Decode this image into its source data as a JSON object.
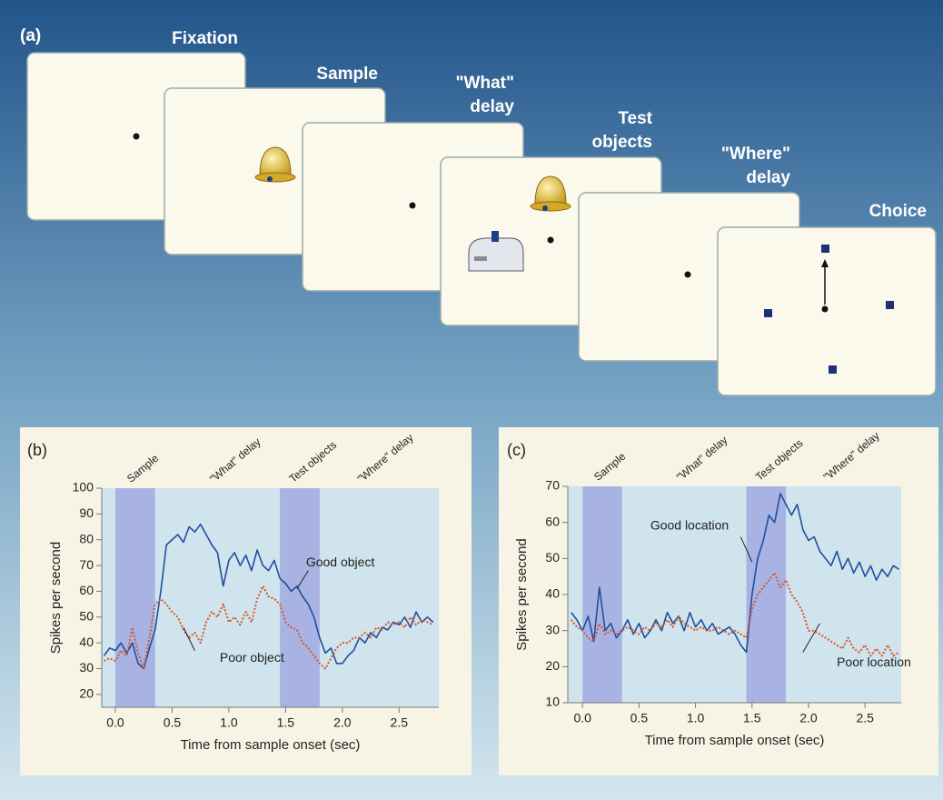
{
  "panel_a": {
    "label": "(a)",
    "screens": [
      [
        "Fixation"
      ],
      [
        "Sample"
      ],
      [
        "\"What\"",
        "delay"
      ],
      [
        "Test",
        "objects"
      ],
      [
        "\"Where\"",
        "delay"
      ],
      [
        "Choice"
      ]
    ]
  },
  "chart_data": [
    {
      "type": "line",
      "panel_label": "(b)",
      "ylabel": "Spikes per second",
      "xlabel": "Time from sample onset (sec)",
      "xlim": [
        -0.12,
        2.85
      ],
      "ylim": [
        15,
        100
      ],
      "xticks": [
        {
          "value": 0,
          "label": "0.0"
        },
        0.5,
        {
          "value": 1,
          "label": "1.0"
        },
        1.5,
        {
          "value": 2,
          "label": "2.0"
        },
        2.5
      ],
      "yticks": [
        20,
        30,
        40,
        50,
        60,
        70,
        80,
        90,
        100
      ],
      "shaded_periods": [
        {
          "start": 0,
          "end": 0.35
        },
        {
          "start": 1.45,
          "end": 1.8
        }
      ],
      "period_labels": [
        {
          "text": "Sample",
          "x": 0.12
        },
        {
          "text": "\"What\" delay",
          "x": 0.85
        },
        {
          "text": "Test objects",
          "x": 1.55
        },
        {
          "text": "\"Where\" delay",
          "x": 2.15
        }
      ],
      "x": [
        -0.1,
        -0.05,
        0,
        0.05,
        0.1,
        0.15,
        0.2,
        0.25,
        0.3,
        0.35,
        0.4,
        0.45,
        0.5,
        0.55,
        0.6,
        0.65,
        0.7,
        0.75,
        0.8,
        0.85,
        0.9,
        0.95,
        1,
        1.05,
        1.1,
        1.15,
        1.2,
        1.25,
        1.3,
        1.35,
        1.4,
        1.45,
        1.5,
        1.55,
        1.6,
        1.65,
        1.7,
        1.75,
        1.8,
        1.85,
        1.9,
        1.95,
        2,
        2.05,
        2.1,
        2.15,
        2.2,
        2.25,
        2.3,
        2.35,
        2.4,
        2.45,
        2.5,
        2.55,
        2.6,
        2.65,
        2.7,
        2.75,
        2.8
      ],
      "series": [
        {
          "name": "Good object",
          "color": "#1f4fa0",
          "style": "solid",
          "values": [
            35,
            38,
            37,
            40,
            36,
            40,
            32,
            30,
            38,
            45,
            60,
            78,
            80,
            82,
            79,
            85,
            83,
            86,
            82,
            78,
            75,
            62,
            72,
            75,
            70,
            74,
            68,
            76,
            70,
            68,
            72,
            65,
            63,
            60,
            62,
            58,
            55,
            50,
            42,
            36,
            38,
            32,
            32,
            35,
            37,
            42,
            40,
            44,
            42,
            46,
            45,
            48,
            47,
            50,
            46,
            52,
            48,
            50,
            48
          ]
        },
        {
          "name": "Poor object",
          "color": "#d9542b",
          "style": "dotted",
          "values": [
            33,
            34,
            33,
            37,
            35,
            46,
            36,
            30,
            42,
            55,
            57,
            55,
            52,
            50,
            45,
            42,
            44,
            40,
            48,
            52,
            50,
            55,
            48,
            50,
            47,
            52,
            48,
            57,
            62,
            58,
            57,
            55,
            48,
            46,
            45,
            40,
            38,
            35,
            32,
            30,
            34,
            38,
            40,
            40,
            42,
            42,
            44,
            42,
            46,
            45,
            48,
            47,
            48,
            46,
            50,
            47,
            49,
            48,
            47
          ]
        }
      ]
    },
    {
      "type": "line",
      "panel_label": "(c)",
      "ylabel": "Spikes per second",
      "xlabel": "Time from sample onset (sec)",
      "xlim": [
        -0.13,
        2.82
      ],
      "ylim": [
        10,
        70
      ],
      "xticks": [
        {
          "value": 0,
          "label": "0.0"
        },
        0.5,
        {
          "value": 1,
          "label": "1.0"
        },
        1.5,
        {
          "value": 2,
          "label": "2.0"
        },
        2.5
      ],
      "yticks": [
        10,
        20,
        30,
        40,
        50,
        60,
        70
      ],
      "shaded_periods": [
        {
          "start": 0,
          "end": 0.35
        },
        {
          "start": 1.45,
          "end": 1.8
        }
      ],
      "period_labels": [
        {
          "text": "Sample",
          "x": 0.12
        },
        {
          "text": "\"What\" delay",
          "x": 0.85
        },
        {
          "text": "Test objects",
          "x": 1.55
        },
        {
          "text": "\"Where\" delay",
          "x": 2.15
        }
      ],
      "x": [
        -0.1,
        -0.05,
        0,
        0.05,
        0.1,
        0.15,
        0.2,
        0.25,
        0.3,
        0.35,
        0.4,
        0.45,
        0.5,
        0.55,
        0.6,
        0.65,
        0.7,
        0.75,
        0.8,
        0.85,
        0.9,
        0.95,
        1,
        1.05,
        1.1,
        1.15,
        1.2,
        1.25,
        1.3,
        1.35,
        1.4,
        1.45,
        1.5,
        1.55,
        1.6,
        1.65,
        1.7,
        1.75,
        1.8,
        1.85,
        1.9,
        1.95,
        2,
        2.05,
        2.1,
        2.15,
        2.2,
        2.25,
        2.3,
        2.35,
        2.4,
        2.45,
        2.5,
        2.55,
        2.6,
        2.65,
        2.7,
        2.75,
        2.8
      ],
      "series": [
        {
          "name": "Good location",
          "color": "#1f4fa0",
          "style": "solid",
          "values": [
            35,
            33,
            30,
            34,
            27,
            42,
            30,
            32,
            28,
            30,
            33,
            29,
            32,
            28,
            30,
            33,
            30,
            35,
            32,
            34,
            30,
            35,
            31,
            33,
            30,
            32,
            29,
            30,
            31,
            29,
            26,
            24,
            40,
            50,
            55,
            62,
            60,
            68,
            65,
            62,
            65,
            58,
            55,
            56,
            52,
            50,
            48,
            52,
            47,
            50,
            46,
            49,
            45,
            48,
            44,
            47,
            45,
            48,
            47
          ]
        },
        {
          "name": "Poor location",
          "color": "#d9542b",
          "style": "dotted",
          "values": [
            33,
            31,
            30,
            28,
            27,
            32,
            29,
            30,
            29,
            30,
            31,
            30,
            29,
            31,
            30,
            32,
            31,
            33,
            31,
            34,
            32,
            31,
            30,
            31,
            30,
            30,
            31,
            30,
            29,
            30,
            29,
            28,
            36,
            40,
            42,
            44,
            46,
            42,
            44,
            40,
            38,
            35,
            30,
            30,
            29,
            28,
            27,
            26,
            25,
            28,
            25,
            24,
            26,
            23,
            25,
            23,
            26,
            23,
            24
          ]
        }
      ]
    }
  ]
}
